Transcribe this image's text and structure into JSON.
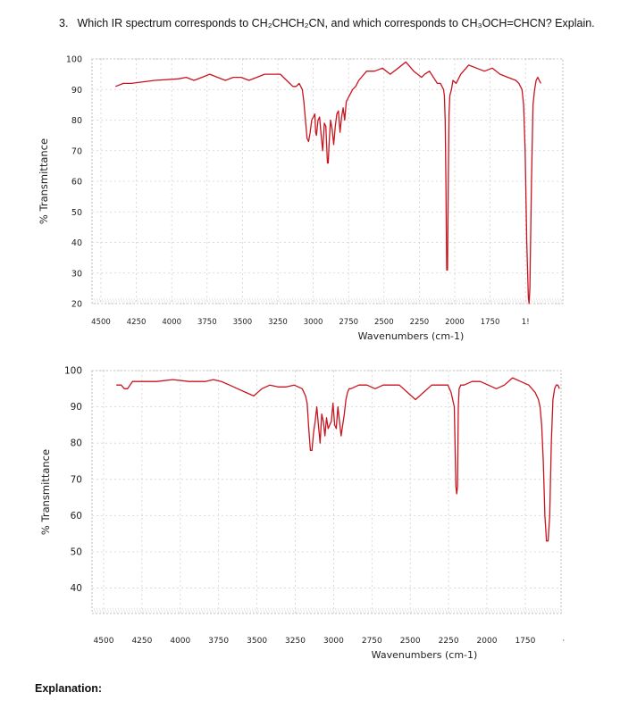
{
  "question": {
    "number": "3.",
    "text": "Which IR spectrum corresponds to CH₂CHCH₂CN, and which corresponds to CH₃OCH=CHCN? Explain."
  },
  "explanation_label": "Explanation:",
  "colors": {
    "trace": "#c8141e",
    "grid": "#d2d2d2",
    "border": "#bcbcbc"
  },
  "chart_data": [
    {
      "type": "line",
      "xlabel": "Wavenumbers (cm-1)",
      "ylabel": "% Transmittance",
      "xlim": [
        4500,
        1500
      ],
      "ylim": [
        20,
        100
      ],
      "x_ticks": [
        "4500",
        "4250",
        "4000",
        "3750",
        "3500",
        "3250",
        "3000",
        "2750",
        "2500",
        "2250",
        "2000",
        "1750",
        "1!"
      ],
      "y_ticks": [
        "100",
        "90",
        "80",
        "70",
        "60",
        "50",
        "40",
        "30",
        "20"
      ],
      "grid": true,
      "series": [
        {
          "x": [
            4350,
            4300,
            4250,
            4100,
            3950,
            3900,
            3850,
            3800,
            3750,
            3700,
            3650,
            3600,
            3550,
            3500,
            3450,
            3400,
            3350,
            3300,
            3260,
            3240,
            3220,
            3200,
            3180,
            3160,
            3150,
            3140,
            3130,
            3120,
            3110,
            3100,
            3090,
            3080,
            3075,
            3070,
            3060,
            3050,
            3040,
            3030,
            3020,
            3010,
            3000,
            2995,
            2990,
            2980,
            2970,
            2960,
            2950,
            2940,
            2930,
            2920,
            2910,
            2900,
            2890,
            2880,
            2870,
            2860,
            2850,
            2840,
            2820,
            2800,
            2750,
            2700,
            2650,
            2600,
            2550,
            2500,
            2450,
            2400,
            2380,
            2350,
            2300,
            2280,
            2260,
            2255,
            2250,
            2245,
            2240,
            2235,
            2230,
            2225,
            2220,
            2210,
            2200,
            2180,
            2150,
            2100,
            2050,
            2000,
            1950,
            1900,
            1850,
            1800,
            1780,
            1760,
            1750,
            1740,
            1730,
            1720,
            1715,
            1710,
            1700,
            1690,
            1680,
            1670,
            1660,
            1650,
            1640
          ],
          "y": [
            91,
            92,
            92,
            93,
            93.5,
            94,
            93,
            94,
            95,
            94,
            93,
            94,
            94,
            93,
            94,
            95,
            95,
            95,
            93,
            92,
            91,
            91,
            92,
            90,
            86,
            80,
            74,
            73,
            76,
            80,
            81,
            82,
            76,
            75,
            80,
            81,
            75,
            70,
            79,
            78,
            66,
            66,
            72,
            80,
            77,
            72,
            78,
            82,
            83,
            76,
            81,
            84,
            80,
            86,
            87,
            88,
            89,
            90,
            91,
            93,
            96,
            96,
            97,
            95,
            97,
            99,
            96,
            94,
            95,
            96,
            92,
            92,
            90,
            88,
            80,
            60,
            31,
            31,
            60,
            82,
            88,
            90,
            93,
            92,
            95,
            98,
            97,
            96,
            97,
            95,
            94,
            93,
            92,
            90,
            85,
            70,
            40,
            22,
            20,
            25,
            60,
            85,
            90,
            93,
            94,
            93,
            92
          ]
        }
      ]
    },
    {
      "type": "line",
      "xlabel": "Wavenumbers (cm-1)",
      "ylabel": "% Transmittance",
      "xlim": [
        4500,
        1600
      ],
      "ylim": [
        30,
        100
      ],
      "x_ticks": [
        "4500",
        "4250",
        "4000",
        "3750",
        "3500",
        "3250",
        "3000",
        "2750",
        "2500",
        "2250",
        "2000",
        "1750",
        "·"
      ],
      "y_ticks": [
        "100",
        "90",
        "80",
        "70",
        "60",
        "50",
        "40"
      ],
      "grid": true,
      "series": [
        {
          "x": [
            4350,
            4320,
            4300,
            4280,
            4250,
            4200,
            4100,
            4000,
            3900,
            3800,
            3750,
            3700,
            3650,
            3600,
            3550,
            3500,
            3450,
            3400,
            3350,
            3300,
            3250,
            3200,
            3180,
            3170,
            3160,
            3150,
            3140,
            3130,
            3120,
            3110,
            3100,
            3090,
            3080,
            3070,
            3060,
            3050,
            3040,
            3030,
            3020,
            3010,
            3000,
            2990,
            2980,
            2970,
            2960,
            2950,
            2940,
            2930,
            2920,
            2910,
            2900,
            2850,
            2800,
            2750,
            2700,
            2650,
            2600,
            2550,
            2500,
            2450,
            2400,
            2350,
            2300,
            2280,
            2260,
            2250,
            2245,
            2240,
            2235,
            2230,
            2220,
            2200,
            2150,
            2100,
            2050,
            2000,
            1950,
            1900,
            1850,
            1800,
            1780,
            1760,
            1750,
            1740,
            1730,
            1720,
            1710,
            1700,
            1690,
            1680,
            1670,
            1660,
            1650,
            1640,
            1630,
            1620,
            1610
          ],
          "y": [
            96,
            96,
            95,
            95,
            97,
            97,
            97,
            97.5,
            97,
            97,
            97.5,
            97,
            96,
            95,
            94,
            93,
            95,
            96,
            95.5,
            95.5,
            96,
            95,
            93,
            91,
            84,
            78,
            78,
            83,
            86,
            90,
            85,
            80,
            88,
            86,
            82,
            87,
            84,
            85,
            86,
            91,
            85,
            84,
            90,
            86,
            82,
            85,
            88,
            92,
            94,
            95,
            95,
            96,
            96,
            95,
            96,
            96,
            96,
            94,
            92,
            94,
            96,
            96,
            96,
            94,
            90,
            68,
            66,
            68,
            90,
            95,
            96,
            96,
            97,
            97,
            96,
            95,
            96,
            98,
            97,
            96,
            95,
            94,
            93,
            92,
            90,
            85,
            75,
            60,
            53,
            53,
            60,
            80,
            92,
            95,
            96,
            96,
            95
          ]
        }
      ]
    }
  ]
}
